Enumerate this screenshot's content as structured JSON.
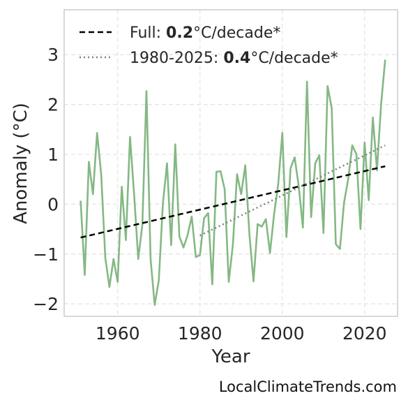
{
  "chart_data": {
    "type": "line",
    "xlabel": "Year",
    "ylabel": "Anomaly (°C)",
    "xlim": [
      1947,
      2028
    ],
    "ylim": [
      -2.25,
      3.9
    ],
    "xticks": [
      "1960",
      "1980",
      "2000",
      "2020"
    ],
    "yticks": [
      "−2",
      "−1",
      "0",
      "1",
      "2",
      "3"
    ],
    "grid": true,
    "legend_position": "top-left",
    "series": [
      {
        "color": "#84b884",
        "x": [
          1951,
          1952,
          1953,
          1954,
          1955,
          1956,
          1957,
          1958,
          1959,
          1960,
          1961,
          1962,
          1963,
          1964,
          1965,
          1966,
          1967,
          1968,
          1969,
          1970,
          1971,
          1972,
          1973,
          1974,
          1975,
          1976,
          1977,
          1978,
          1979,
          1980,
          1981,
          1982,
          1983,
          1984,
          1985,
          1986,
          1987,
          1988,
          1989,
          1990,
          1991,
          1992,
          1993,
          1994,
          1995,
          1996,
          1997,
          1998,
          1999,
          2000,
          2001,
          2002,
          2003,
          2004,
          2005,
          2006,
          2007,
          2008,
          2009,
          2010,
          2011,
          2012,
          2013,
          2014,
          2015,
          2016,
          2017,
          2018,
          2019,
          2020,
          2021,
          2022,
          2023,
          2024,
          2025
        ],
        "values": [
          0.07,
          -1.42,
          0.85,
          0.2,
          1.43,
          0.6,
          -1.08,
          -1.66,
          -1.1,
          -1.56,
          0.35,
          -0.72,
          1.35,
          0.2,
          -1.1,
          -0.42,
          2.27,
          -1.1,
          -2.02,
          -1.53,
          0.02,
          0.82,
          -0.82,
          1.2,
          -0.65,
          -0.87,
          -0.62,
          -0.25,
          -1.06,
          -1.02,
          -0.28,
          -0.18,
          -1.61,
          0.65,
          0.66,
          0.3,
          -1.56,
          -0.8,
          0.6,
          0.2,
          0.78,
          -0.6,
          -1.55,
          -0.4,
          -0.45,
          -0.3,
          -0.98,
          -0.2,
          0.4,
          1.43,
          -0.66,
          0.72,
          0.94,
          0.35,
          -0.47,
          2.46,
          -0.26,
          0.82,
          0.98,
          -0.58,
          2.37,
          1.93,
          -0.8,
          -0.9,
          0.03,
          0.5,
          1.18,
          1.0,
          -0.5,
          1.24,
          0.08,
          1.74,
          0.68,
          2.0,
          2.9
        ]
      },
      {
        "name": "Full",
        "style": "dashed",
        "color": "#000000",
        "x": [
          1951,
          2025
        ],
        "values": [
          -0.67,
          0.76
        ]
      },
      {
        "name": "1980-2025",
        "style": "dotted",
        "color": "#808080",
        "x": [
          1980,
          2025
        ],
        "values": [
          -0.63,
          1.18
        ]
      }
    ],
    "legend": [
      {
        "prefix": "Full: ",
        "value": "0.2",
        "suffix": "°C/decade*"
      },
      {
        "prefix": "1980-2025: ",
        "value": "0.4",
        "suffix": "°C/decade*"
      }
    ],
    "source": "LocalClimateTrends.com"
  }
}
